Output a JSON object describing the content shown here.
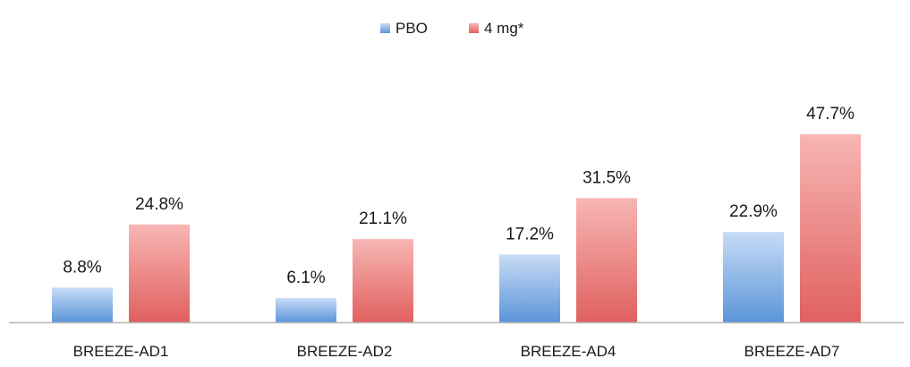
{
  "chart_data": {
    "type": "bar",
    "categories": [
      "BREEZE-AD1",
      "BREEZE-AD2",
      "BREEZE-AD4",
      "BREEZE-AD7"
    ],
    "series": [
      {
        "name": "PBO",
        "values": [
          8.8,
          6.1,
          17.2,
          22.9
        ],
        "labels": [
          "8.8%",
          "6.1%",
          "17.2%",
          "22.9%"
        ],
        "color_light": "#c7dcf6",
        "color_dark": "#5b95d9"
      },
      {
        "name": "4 mg*",
        "values": [
          24.8,
          21.1,
          31.5,
          47.7
        ],
        "labels": [
          "24.8%",
          "21.1%",
          "31.5%",
          "47.7%"
        ],
        "color_light": "#f7b6b4",
        "color_dark": "#e0615f"
      }
    ],
    "ylim": [
      0,
      50
    ],
    "legend_position": "top-center",
    "grid": false,
    "axis_line_color": "#b5b5b5"
  }
}
